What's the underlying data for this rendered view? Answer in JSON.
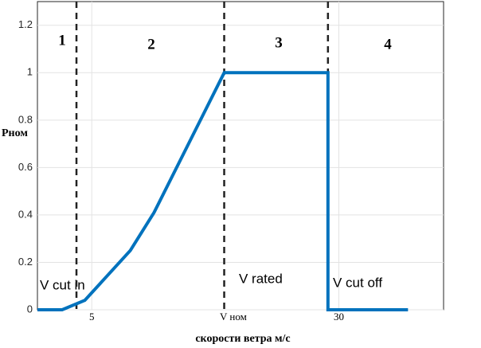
{
  "chart_data": {
    "type": "line",
    "ylabel": "Pном",
    "xlabel": "скорости ветра м/с",
    "x": [
      -0.5,
      2,
      4.3,
      8.9,
      11.3,
      18.4,
      28.9,
      28.9,
      37
    ],
    "series": [
      {
        "color": "#0072bd",
        "values": [
          0,
          0,
          0.04,
          0.25,
          0.41,
          1,
          1,
          0,
          0
        ]
      }
    ],
    "xlim": [
      -0.5,
      40.6
    ],
    "xticks": [
      5,
      30
    ],
    "ylim": [
      0,
      1.3
    ],
    "yticks": [
      0,
      0.2,
      0.4,
      0.6,
      0.8,
      1,
      1.2
    ],
    "grid": true,
    "vlines": [
      3.45,
      18.4,
      28.9
    ],
    "regions": [
      "1",
      "2",
      "3",
      "4"
    ],
    "annotations": [
      "V cut in",
      "V rated",
      "V cut off",
      "V ном"
    ]
  }
}
